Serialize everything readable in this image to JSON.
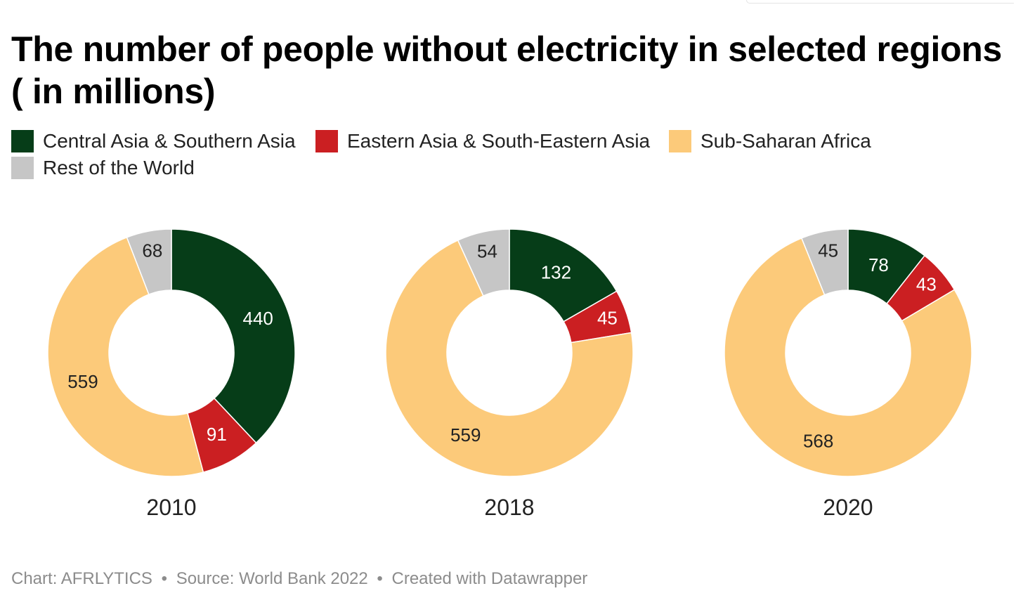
{
  "title": "The number of people without electricity in selected regions ( in millions)",
  "legend": [
    {
      "label": "Central Asia & Southern Asia",
      "color": "#063d18"
    },
    {
      "label": "Eastern Asia & South-Eastern Asia",
      "color": "#cb1f22"
    },
    {
      "label": "Sub-Saharan Africa",
      "color": "#fcca7a"
    },
    {
      "label": "Rest of the World",
      "color": "#c6c6c6"
    }
  ],
  "chart_data": [
    {
      "type": "pie",
      "variant": "donut",
      "label": "2010",
      "categories": [
        "Central Asia & Southern Asia",
        "Eastern Asia & South-Eastern Asia",
        "Sub-Saharan Africa",
        "Rest of the World"
      ],
      "values": [
        440,
        91,
        559,
        68
      ]
    },
    {
      "type": "pie",
      "variant": "donut",
      "label": "2018",
      "categories": [
        "Central Asia & Southern Asia",
        "Eastern Asia & South-Eastern Asia",
        "Sub-Saharan Africa",
        "Rest of the World"
      ],
      "values": [
        132,
        45,
        559,
        54
      ]
    },
    {
      "type": "pie",
      "variant": "donut",
      "label": "2020",
      "categories": [
        "Central Asia & Southern Asia",
        "Eastern Asia & South-Eastern Asia",
        "Sub-Saharan Africa",
        "Rest of the World"
      ],
      "values": [
        78,
        43,
        568,
        45
      ]
    }
  ],
  "footer": {
    "chart_credit": "Chart: AFRLYTICS",
    "source": "Source: World Bank 2022",
    "created_with": "Created with Datawrapper",
    "separator": "•"
  }
}
